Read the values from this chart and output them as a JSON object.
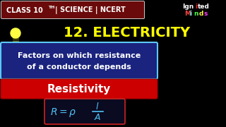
{
  "bg_color": "#000000",
  "top_bar_color": "#6B0A0A",
  "top_bar_text_color": "#FFFFFF",
  "top_bar_label": "CLASS 10",
  "top_bar_sup": "TH",
  "top_bar_rest": " | SCIENCE | NCERT",
  "title_text": "12. ELECTRICITY",
  "title_color": "#FFFF00",
  "blue_box_facecolor": "#1a237e",
  "blue_box_edgecolor": "#5BC8F5",
  "blue_line1": "Factors on which resistance",
  "blue_line2": "of a conductor depends",
  "blue_text_color": "#FFFFFF",
  "red_box_color": "#CC0000",
  "red_text": "Resistivity",
  "red_text_color": "#FFFFFF",
  "formula_box_face": "#0a0a20",
  "formula_box_edge": "#CC2222",
  "formula_text_color": "#4FC3F7",
  "brand_line1_parts": [
    "Ign",
    "i",
    "ted"
  ],
  "brand_line1_colors": [
    "#FFFFFF",
    "#FF0000",
    "#FFFFFF"
  ],
  "brand_line2_letters": [
    "M",
    "i",
    "n",
    "d",
    "s"
  ],
  "brand_line2_colors": [
    "#FF4444",
    "#44FFFF",
    "#44FF44",
    "#FFFF44",
    "#FF44FF"
  ],
  "bulb_color": "#FFFF44"
}
